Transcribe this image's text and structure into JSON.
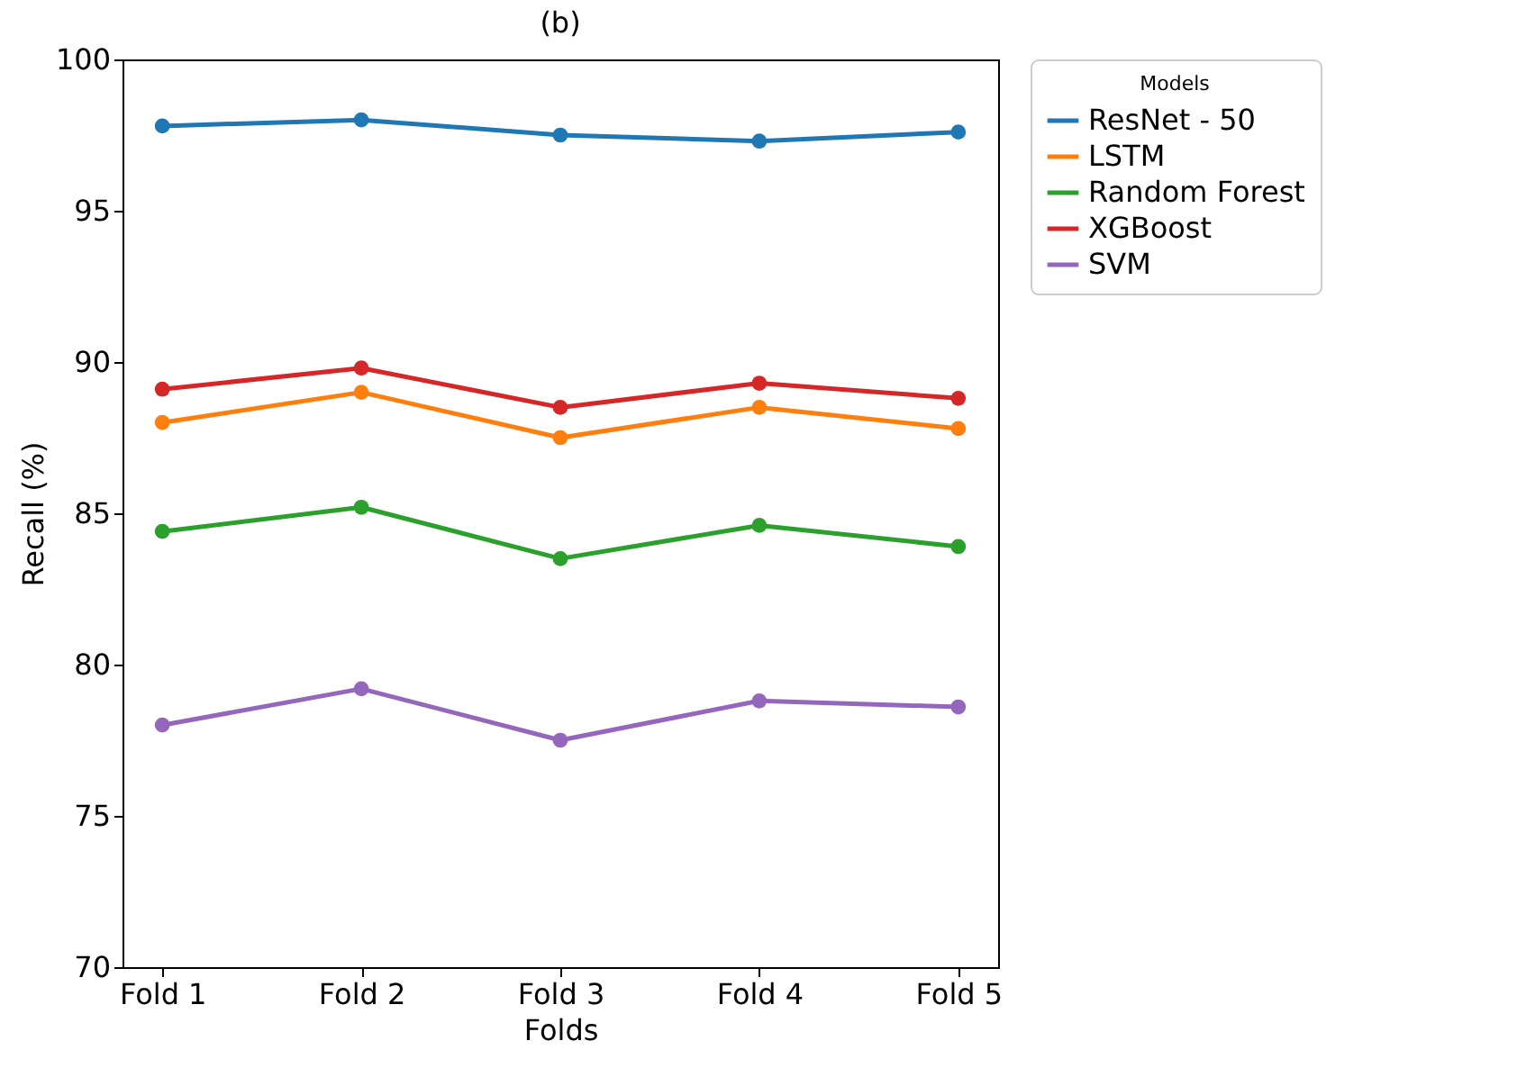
{
  "chart_data": {
    "type": "line",
    "title": "(b)",
    "xlabel": "Folds",
    "ylabel": "Recall (%)",
    "legend_title": "Models",
    "categories": [
      "Fold 1",
      "Fold 2",
      "Fold 3",
      "Fold 4",
      "Fold 5"
    ],
    "series": [
      {
        "name": "ResNet - 50",
        "color": "#1f77b4",
        "values": [
          97.8,
          98.0,
          97.5,
          97.3,
          97.6
        ]
      },
      {
        "name": "LSTM",
        "color": "#ff7f0e",
        "values": [
          88.0,
          89.0,
          87.5,
          88.5,
          87.8
        ]
      },
      {
        "name": "Random Forest",
        "color": "#2ca02c",
        "values": [
          84.4,
          85.2,
          83.5,
          84.6,
          83.9
        ]
      },
      {
        "name": "XGBoost",
        "color": "#d62728",
        "values": [
          89.1,
          89.8,
          88.5,
          89.3,
          88.8
        ]
      },
      {
        "name": "SVM",
        "color": "#9467bd",
        "values": [
          78.0,
          79.2,
          77.5,
          78.8,
          78.6
        ]
      }
    ],
    "ylim": [
      70,
      100
    ],
    "yticks": [
      70,
      75,
      80,
      85,
      90,
      95,
      100
    ],
    "grid": false,
    "legend": "top right",
    "marker": "circle",
    "line_style": "solid"
  }
}
